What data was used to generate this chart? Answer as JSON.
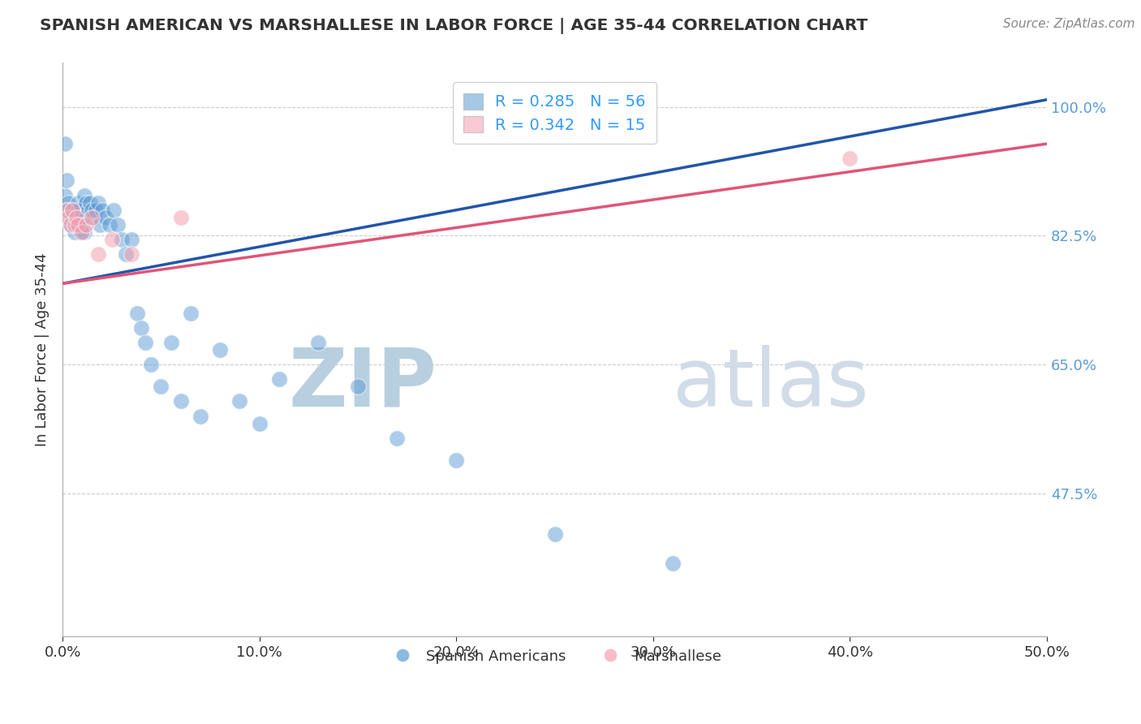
{
  "title": "SPANISH AMERICAN VS MARSHALLESE IN LABOR FORCE | AGE 35-44 CORRELATION CHART",
  "source": "Source: ZipAtlas.com",
  "xlabel": "",
  "ylabel": "In Labor Force | Age 35-44",
  "xlim": [
    0.0,
    0.5
  ],
  "ylim": [
    0.28,
    1.06
  ],
  "xtick_labels": [
    "0.0%",
    "10.0%",
    "20.0%",
    "30.0%",
    "40.0%",
    "50.0%"
  ],
  "xtick_vals": [
    0.0,
    0.1,
    0.2,
    0.3,
    0.4,
    0.5
  ],
  "ytick_labels": [
    "47.5%",
    "65.0%",
    "82.5%",
    "100.0%"
  ],
  "ytick_vals": [
    0.475,
    0.65,
    0.825,
    1.0
  ],
  "grid_color": "#cccccc",
  "background_color": "#ffffff",
  "watermark": "ZIPatlas",
  "watermark_color": "#ccd8e8",
  "blue_color": "#5b9bd5",
  "pink_color": "#f4a0b0",
  "blue_line_color": "#2255aa",
  "pink_line_color": "#e05575",
  "R_blue": 0.285,
  "N_blue": 56,
  "R_pink": 0.342,
  "N_pink": 15,
  "legend_label_blue": "Spanish Americans",
  "legend_label_pink": "Marshallese",
  "blue_x": [
    0.001,
    0.001,
    0.002,
    0.003,
    0.003,
    0.004,
    0.004,
    0.005,
    0.005,
    0.006,
    0.006,
    0.007,
    0.007,
    0.008,
    0.008,
    0.009,
    0.009,
    0.01,
    0.01,
    0.011,
    0.011,
    0.012,
    0.013,
    0.014,
    0.015,
    0.016,
    0.017,
    0.018,
    0.019,
    0.02,
    0.022,
    0.024,
    0.026,
    0.028,
    0.03,
    0.032,
    0.035,
    0.038,
    0.04,
    0.042,
    0.045,
    0.05,
    0.055,
    0.06,
    0.065,
    0.07,
    0.08,
    0.09,
    0.1,
    0.11,
    0.13,
    0.15,
    0.17,
    0.2,
    0.25,
    0.31
  ],
  "blue_y": [
    0.95,
    0.88,
    0.9,
    0.87,
    0.86,
    0.85,
    0.84,
    0.86,
    0.85,
    0.84,
    0.83,
    0.85,
    0.84,
    0.87,
    0.86,
    0.84,
    0.83,
    0.85,
    0.84,
    0.83,
    0.88,
    0.87,
    0.86,
    0.87,
    0.86,
    0.85,
    0.86,
    0.87,
    0.84,
    0.86,
    0.85,
    0.84,
    0.86,
    0.84,
    0.82,
    0.8,
    0.82,
    0.72,
    0.7,
    0.68,
    0.65,
    0.62,
    0.68,
    0.6,
    0.72,
    0.58,
    0.67,
    0.6,
    0.57,
    0.63,
    0.68,
    0.62,
    0.55,
    0.52,
    0.42,
    0.38
  ],
  "pink_x": [
    0.002,
    0.003,
    0.004,
    0.005,
    0.006,
    0.007,
    0.008,
    0.01,
    0.012,
    0.015,
    0.018,
    0.025,
    0.035,
    0.06,
    0.4
  ],
  "pink_y": [
    0.86,
    0.85,
    0.84,
    0.86,
    0.84,
    0.85,
    0.84,
    0.83,
    0.84,
    0.85,
    0.8,
    0.82,
    0.8,
    0.85,
    0.93
  ],
  "blue_trend_x0": 0.0,
  "blue_trend_y0": 0.76,
  "blue_trend_x1": 0.5,
  "blue_trend_y1": 1.01,
  "pink_trend_x0": 0.0,
  "pink_trend_y0": 0.76,
  "pink_trend_x1": 0.5,
  "pink_trend_y1": 0.95
}
